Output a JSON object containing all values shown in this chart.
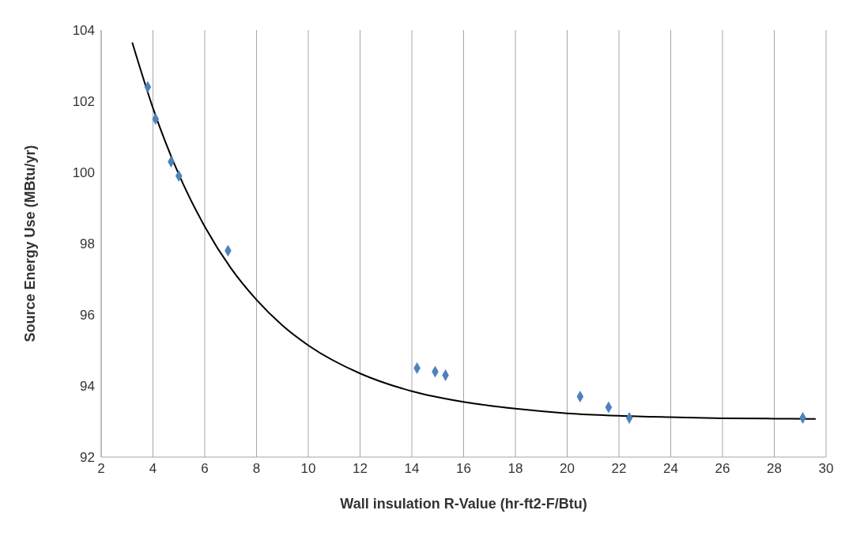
{
  "chart_data": {
    "type": "scatter",
    "xlabel": "Wall insulation  R-Value (hr-ft2-F/Btu)",
    "ylabel": "Source Energy Use (MBtu/yr)",
    "xlim": [
      2,
      30
    ],
    "xticks": [
      2,
      4,
      6,
      8,
      10,
      12,
      14,
      16,
      18,
      20,
      22,
      24,
      26,
      28,
      30
    ],
    "ylim": [
      92,
      104
    ],
    "yticks": [
      92,
      94,
      96,
      98,
      100,
      102,
      104
    ],
    "grid": "x",
    "series": [
      {
        "type": "scatter",
        "color": "#4f81bd",
        "marker": "diamond",
        "x": [
          3.8,
          4.1,
          4.7,
          5.0,
          6.9,
          14.2,
          14.9,
          15.3,
          20.5,
          21.6,
          22.4,
          29.1
        ],
        "values": [
          102.4,
          101.5,
          100.3,
          99.9,
          97.8,
          94.5,
          94.4,
          94.3,
          93.7,
          93.4,
          93.1,
          93.1
        ]
      },
      {
        "type": "line",
        "color": "#000000",
        "marker": "none",
        "line_style": "solid",
        "x": [
          3.2,
          4,
          5,
          6,
          7,
          8,
          9,
          10,
          12,
          14,
          16,
          18,
          20,
          22,
          24,
          26,
          28,
          29.6
        ],
        "values": [
          103.65,
          101.81,
          99.94,
          98.48,
          97.32,
          96.42,
          95.7,
          95.14,
          94.35,
          93.85,
          93.55,
          93.36,
          93.23,
          93.16,
          93.12,
          93.09,
          93.08,
          93.07
        ]
      }
    ]
  }
}
